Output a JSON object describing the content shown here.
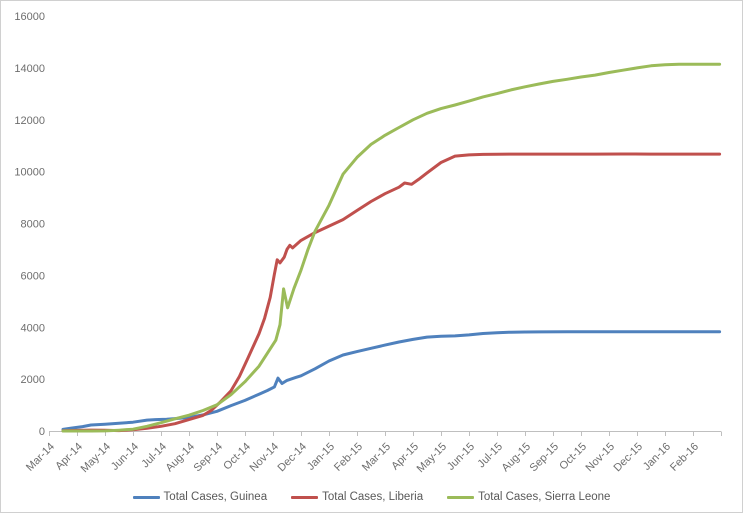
{
  "window": {
    "background": "#ffffff",
    "border_color": "#d0d0d0"
  },
  "chart_data": {
    "type": "line",
    "title": "",
    "xlabel": "",
    "ylabel": "",
    "grid": false,
    "legend_position": "bottom",
    "axis_color": "#bfbfbf",
    "tick_color": "#bfbfbf",
    "label_color": "#6e6e6e",
    "ylim": [
      0,
      16000
    ],
    "ytick_interval": 2000,
    "ytick_labels": [
      "0",
      "2000",
      "4000",
      "6000",
      "8000",
      "10000",
      "12000",
      "14000",
      "16000"
    ],
    "x_categories": [
      "Mar-14",
      "Apr-14",
      "May-14",
      "Jun-14",
      "Jul-14",
      "Aug-14",
      "Sep-14",
      "Oct-14",
      "Nov-14",
      "Dec-14",
      "Jan-15",
      "Feb-15",
      "Mar-15",
      "Apr-15",
      "May-15",
      "Jun-15",
      "Jul-15",
      "Aug-15",
      "Sep-15",
      "Oct-15",
      "Nov-15",
      "Dec-15",
      "Jan-16",
      "Feb-16"
    ],
    "x_unit": "month index from Mar-14 (0) to Feb-16 (23), fractional = intra-month reports",
    "series": [
      {
        "name": "Total Cases, Guinea",
        "color": "#4f81bd",
        "points": [
          [
            0,
            60
          ],
          [
            0.3,
            110
          ],
          [
            0.7,
            170
          ],
          [
            1,
            230
          ],
          [
            1.5,
            260
          ],
          [
            2,
            295
          ],
          [
            2.5,
            340
          ],
          [
            3,
            420
          ],
          [
            3.3,
            440
          ],
          [
            3.7,
            455
          ],
          [
            4,
            480
          ],
          [
            4.5,
            520
          ],
          [
            5,
            620
          ],
          [
            5.5,
            760
          ],
          [
            6,
            980
          ],
          [
            6.5,
            1180
          ],
          [
            7,
            1420
          ],
          [
            7.3,
            1560
          ],
          [
            7.55,
            1700
          ],
          [
            7.68,
            2040
          ],
          [
            7.82,
            1830
          ],
          [
            8,
            1950
          ],
          [
            8.3,
            2060
          ],
          [
            8.5,
            2130
          ],
          [
            9,
            2400
          ],
          [
            9.5,
            2700
          ],
          [
            10,
            2930
          ],
          [
            10.5,
            3060
          ],
          [
            11,
            3190
          ],
          [
            11.5,
            3310
          ],
          [
            12,
            3430
          ],
          [
            12.5,
            3530
          ],
          [
            13,
            3620
          ],
          [
            13.5,
            3650
          ],
          [
            14,
            3665
          ],
          [
            14.5,
            3705
          ],
          [
            15,
            3760
          ],
          [
            15.5,
            3790
          ],
          [
            16,
            3810
          ],
          [
            16.5,
            3815
          ],
          [
            17,
            3820
          ],
          [
            18,
            3825
          ],
          [
            19,
            3825
          ],
          [
            20,
            3825
          ],
          [
            21,
            3825
          ],
          [
            22,
            3825
          ],
          [
            23,
            3825
          ],
          [
            23.45,
            3825
          ]
        ]
      },
      {
        "name": "Total Cases, Liberia",
        "color": "#c0504d",
        "points": [
          [
            0,
            8
          ],
          [
            0.5,
            22
          ],
          [
            1,
            35
          ],
          [
            1.5,
            28
          ],
          [
            2,
            15
          ],
          [
            2.5,
            45
          ],
          [
            3,
            105
          ],
          [
            3.5,
            180
          ],
          [
            4,
            280
          ],
          [
            4.5,
            440
          ],
          [
            5,
            600
          ],
          [
            5.3,
            800
          ],
          [
            5.6,
            1100
          ],
          [
            6,
            1550
          ],
          [
            6.3,
            2100
          ],
          [
            6.6,
            2800
          ],
          [
            7,
            3750
          ],
          [
            7.2,
            4350
          ],
          [
            7.4,
            5150
          ],
          [
            7.55,
            6050
          ],
          [
            7.65,
            6600
          ],
          [
            7.75,
            6480
          ],
          [
            7.9,
            6700
          ],
          [
            8,
            7000
          ],
          [
            8.1,
            7160
          ],
          [
            8.2,
            7060
          ],
          [
            8.5,
            7350
          ],
          [
            9,
            7650
          ],
          [
            9.5,
            7900
          ],
          [
            10,
            8150
          ],
          [
            10.5,
            8500
          ],
          [
            11,
            8850
          ],
          [
            11.5,
            9150
          ],
          [
            12,
            9400
          ],
          [
            12.2,
            9560
          ],
          [
            12.45,
            9510
          ],
          [
            12.7,
            9700
          ],
          [
            13,
            9950
          ],
          [
            13.5,
            10350
          ],
          [
            14,
            10600
          ],
          [
            14.5,
            10645
          ],
          [
            15,
            10665
          ],
          [
            15.5,
            10672
          ],
          [
            16,
            10675
          ],
          [
            17,
            10675
          ],
          [
            18,
            10675
          ],
          [
            19,
            10675
          ],
          [
            20,
            10678
          ],
          [
            21,
            10675
          ],
          [
            22,
            10675
          ],
          [
            23,
            10675
          ],
          [
            23.45,
            10675
          ]
        ]
      },
      {
        "name": "Total Cases, Sierra Leone",
        "color": "#9bbb59",
        "points": [
          [
            0,
            0
          ],
          [
            0.5,
            0
          ],
          [
            1,
            0
          ],
          [
            1.5,
            5
          ],
          [
            2,
            30
          ],
          [
            2.5,
            70
          ],
          [
            3,
            180
          ],
          [
            3.5,
            320
          ],
          [
            4,
            470
          ],
          [
            4.5,
            610
          ],
          [
            5,
            790
          ],
          [
            5.5,
            1010
          ],
          [
            6,
            1400
          ],
          [
            6.5,
            1900
          ],
          [
            7,
            2500
          ],
          [
            7.3,
            3000
          ],
          [
            7.6,
            3500
          ],
          [
            7.75,
            4100
          ],
          [
            7.88,
            5480
          ],
          [
            8.02,
            4750
          ],
          [
            8.25,
            5500
          ],
          [
            8.5,
            6200
          ],
          [
            8.75,
            7000
          ],
          [
            9,
            7700
          ],
          [
            9.3,
            8300
          ],
          [
            9.5,
            8700
          ],
          [
            9.75,
            9300
          ],
          [
            10,
            9900
          ],
          [
            10.5,
            10550
          ],
          [
            11,
            11050
          ],
          [
            11.5,
            11400
          ],
          [
            12,
            11700
          ],
          [
            12.5,
            12000
          ],
          [
            13,
            12250
          ],
          [
            13.5,
            12430
          ],
          [
            14,
            12570
          ],
          [
            14.5,
            12720
          ],
          [
            15,
            12880
          ],
          [
            15.5,
            13010
          ],
          [
            16,
            13150
          ],
          [
            16.5,
            13270
          ],
          [
            17,
            13380
          ],
          [
            17.5,
            13480
          ],
          [
            18,
            13560
          ],
          [
            18.5,
            13650
          ],
          [
            19,
            13720
          ],
          [
            19.5,
            13820
          ],
          [
            20,
            13910
          ],
          [
            20.5,
            14000
          ],
          [
            21,
            14080
          ],
          [
            21.5,
            14120
          ],
          [
            22,
            14140
          ],
          [
            23,
            14140
          ],
          [
            23.45,
            14140
          ]
        ]
      }
    ]
  }
}
